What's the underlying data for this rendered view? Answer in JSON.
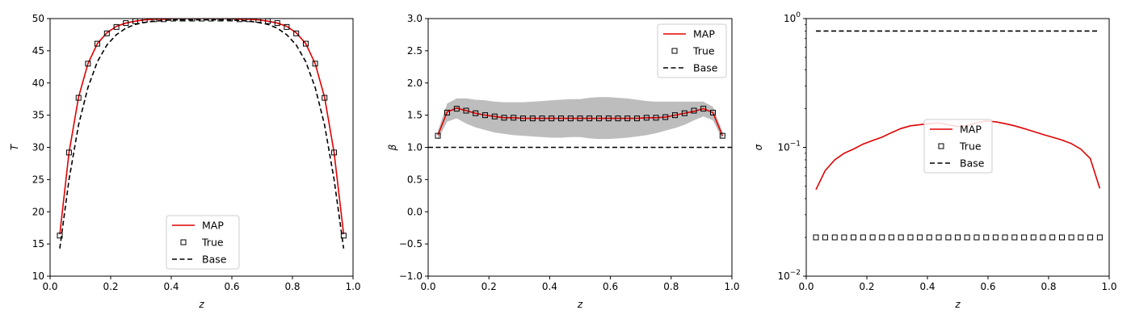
{
  "figure": {
    "background": "#ffffff"
  },
  "chart_data": [
    {
      "type": "line",
      "xlabel": "z",
      "ylabel": "T",
      "xlim": [
        0,
        1
      ],
      "ylim": [
        10,
        50
      ],
      "xticks": [
        "0.0",
        "0.2",
        "0.4",
        "0.6",
        "0.8",
        "1.0"
      ],
      "yticks": [
        "10",
        "15",
        "20",
        "25",
        "30",
        "35",
        "40",
        "45",
        "50"
      ],
      "yscale": "linear",
      "grid": false,
      "legend": {
        "placement": "lower center",
        "entries": [
          "MAP",
          "True",
          " Base"
        ]
      },
      "series": [
        {
          "name": "MAP",
          "style": "line",
          "color": "#e00000",
          "x": [
            0.032,
            0.0625,
            0.094,
            0.125,
            0.156,
            0.1875,
            0.219,
            0.25,
            0.281,
            0.3125,
            0.344,
            0.375,
            0.406,
            0.4375,
            0.469,
            0.5,
            0.531,
            0.5625,
            0.594,
            0.625,
            0.656,
            0.6875,
            0.719,
            0.75,
            0.781,
            0.8125,
            0.844,
            0.875,
            0.906,
            0.9375,
            0.969
          ],
          "y": [
            16.5,
            29.2,
            37.8,
            43.0,
            46.1,
            47.8,
            48.8,
            49.3,
            49.6,
            49.8,
            49.9,
            49.9,
            50.0,
            50.0,
            50.0,
            50.0,
            50.0,
            50.0,
            50.0,
            49.9,
            49.9,
            49.8,
            49.6,
            49.3,
            48.8,
            47.8,
            46.1,
            43.0,
            37.8,
            29.2,
            16.5
          ]
        },
        {
          "name": "True",
          "style": "markers",
          "marker": "square",
          "color": "#000000",
          "x": [
            0.032,
            0.0625,
            0.094,
            0.125,
            0.156,
            0.1875,
            0.219,
            0.25,
            0.281,
            0.3125,
            0.344,
            0.375,
            0.406,
            0.4375,
            0.469,
            0.5,
            0.531,
            0.5625,
            0.594,
            0.625,
            0.656,
            0.6875,
            0.719,
            0.75,
            0.781,
            0.8125,
            0.844,
            0.875,
            0.906,
            0.9375,
            0.969
          ],
          "y": [
            16.3,
            29.2,
            37.7,
            43.0,
            46.1,
            47.7,
            48.7,
            49.3,
            49.6,
            49.8,
            49.9,
            49.9,
            50.0,
            50.0,
            50.0,
            50.0,
            50.0,
            50.0,
            50.0,
            49.9,
            49.9,
            49.8,
            49.6,
            49.3,
            48.7,
            47.7,
            46.1,
            43.0,
            37.7,
            29.2,
            16.3
          ]
        },
        {
          "name": " Base",
          "style": "dashed",
          "color": "#000000",
          "x": [
            0.032,
            0.0625,
            0.094,
            0.125,
            0.156,
            0.1875,
            0.219,
            0.25,
            0.281,
            0.3125,
            0.344,
            0.375,
            0.406,
            0.4375,
            0.469,
            0.5,
            0.531,
            0.5625,
            0.594,
            0.625,
            0.656,
            0.6875,
            0.719,
            0.75,
            0.781,
            0.8125,
            0.844,
            0.875,
            0.906,
            0.9375,
            0.969
          ],
          "y": [
            14.3,
            25.0,
            33.5,
            39.3,
            43.3,
            45.9,
            47.5,
            48.5,
            49.1,
            49.4,
            49.6,
            49.7,
            49.8,
            49.8,
            49.8,
            49.8,
            49.8,
            49.8,
            49.8,
            49.7,
            49.6,
            49.4,
            49.1,
            48.5,
            47.5,
            45.9,
            43.3,
            39.3,
            33.5,
            25.0,
            14.3
          ]
        }
      ]
    },
    {
      "type": "line",
      "xlabel": "z",
      "ylabel": "β",
      "xlim": [
        0,
        1
      ],
      "ylim": [
        -1.0,
        3.0
      ],
      "xticks": [
        "0.0",
        "0.2",
        "0.4",
        "0.6",
        "0.8",
        "1.0"
      ],
      "yticks": [
        "−1.0",
        "−0.5",
        "0.0",
        "0.5",
        "1.0",
        "1.5",
        "2.0",
        "2.5",
        "3.0"
      ],
      "yscale": "linear",
      "grid": false,
      "legend": {
        "placement": "upper right",
        "entries": [
          "MAP",
          "True",
          "Base"
        ]
      },
      "band": {
        "color": "#bdbdbd",
        "x": [
          0.032,
          0.0625,
          0.094,
          0.125,
          0.156,
          0.1875,
          0.219,
          0.25,
          0.281,
          0.3125,
          0.344,
          0.375,
          0.406,
          0.4375,
          0.469,
          0.5,
          0.531,
          0.5625,
          0.594,
          0.625,
          0.656,
          0.6875,
          0.719,
          0.75,
          0.781,
          0.8125,
          0.844,
          0.875,
          0.906,
          0.9375,
          0.969
        ],
        "upper": [
          1.25,
          1.68,
          1.76,
          1.76,
          1.74,
          1.73,
          1.71,
          1.7,
          1.7,
          1.7,
          1.71,
          1.72,
          1.73,
          1.74,
          1.75,
          1.75,
          1.77,
          1.78,
          1.78,
          1.77,
          1.76,
          1.74,
          1.72,
          1.71,
          1.71,
          1.71,
          1.71,
          1.71,
          1.71,
          1.63,
          1.24
        ],
        "lower": [
          1.12,
          1.4,
          1.45,
          1.37,
          1.31,
          1.27,
          1.23,
          1.21,
          1.19,
          1.18,
          1.17,
          1.16,
          1.15,
          1.15,
          1.16,
          1.16,
          1.14,
          1.13,
          1.13,
          1.14,
          1.15,
          1.17,
          1.19,
          1.22,
          1.26,
          1.3,
          1.35,
          1.42,
          1.48,
          1.42,
          1.12
        ]
      },
      "series": [
        {
          "name": "MAP",
          "style": "line",
          "color": "#e00000",
          "x": [
            0.032,
            0.0625,
            0.094,
            0.125,
            0.156,
            0.1875,
            0.219,
            0.25,
            0.281,
            0.3125,
            0.344,
            0.375,
            0.406,
            0.4375,
            0.469,
            0.5,
            0.531,
            0.5625,
            0.594,
            0.625,
            0.656,
            0.6875,
            0.719,
            0.75,
            0.781,
            0.8125,
            0.844,
            0.875,
            0.906,
            0.9375,
            0.969
          ],
          "y": [
            1.19,
            1.55,
            1.61,
            1.57,
            1.53,
            1.5,
            1.48,
            1.46,
            1.46,
            1.45,
            1.45,
            1.45,
            1.45,
            1.45,
            1.45,
            1.45,
            1.45,
            1.45,
            1.45,
            1.45,
            1.45,
            1.45,
            1.46,
            1.46,
            1.47,
            1.5,
            1.53,
            1.56,
            1.6,
            1.54,
            1.18
          ]
        },
        {
          "name": "True",
          "style": "markers",
          "marker": "square",
          "color": "#000000",
          "x": [
            0.032,
            0.0625,
            0.094,
            0.125,
            0.156,
            0.1875,
            0.219,
            0.25,
            0.281,
            0.3125,
            0.344,
            0.375,
            0.406,
            0.4375,
            0.469,
            0.5,
            0.531,
            0.5625,
            0.594,
            0.625,
            0.656,
            0.6875,
            0.719,
            0.75,
            0.781,
            0.8125,
            0.844,
            0.875,
            0.906,
            0.9375,
            0.969
          ],
          "y": [
            1.18,
            1.54,
            1.6,
            1.57,
            1.53,
            1.5,
            1.48,
            1.46,
            1.46,
            1.45,
            1.45,
            1.45,
            1.45,
            1.45,
            1.45,
            1.45,
            1.45,
            1.45,
            1.45,
            1.45,
            1.45,
            1.45,
            1.46,
            1.46,
            1.47,
            1.5,
            1.53,
            1.57,
            1.6,
            1.54,
            1.18
          ]
        },
        {
          "name": "Base",
          "style": "dashed",
          "color": "#000000",
          "x": [
            0,
            1
          ],
          "y": [
            1.0,
            1.0
          ]
        }
      ]
    },
    {
      "type": "line",
      "xlabel": "z",
      "ylabel": "σ",
      "xlim": [
        0,
        1
      ],
      "ylim": [
        0.01,
        1
      ],
      "xticks": [
        "0.0",
        "0.2",
        "0.4",
        "0.6",
        "0.8",
        "1.0"
      ],
      "yticks": [
        {
          "value": 0.01,
          "base": "10",
          "exp": "−2"
        },
        {
          "value": 0.1,
          "base": "10",
          "exp": "−1"
        },
        {
          "value": 1,
          "base": "10",
          "exp": "0"
        }
      ],
      "yscale": "log",
      "grid": false,
      "legend": {
        "placement": "center",
        "entries": [
          "MAP",
          "True",
          "Base"
        ]
      },
      "series": [
        {
          "name": "MAP",
          "style": "line",
          "color": "#e00000",
          "x": [
            0.032,
            0.0625,
            0.094,
            0.125,
            0.156,
            0.1875,
            0.219,
            0.25,
            0.281,
            0.3125,
            0.344,
            0.375,
            0.406,
            0.4375,
            0.469,
            0.5,
            0.531,
            0.5625,
            0.594,
            0.625,
            0.656,
            0.6875,
            0.719,
            0.75,
            0.781,
            0.8125,
            0.844,
            0.875,
            0.906,
            0.9375,
            0.969
          ],
          "y": [
            0.047,
            0.066,
            0.08,
            0.09,
            0.097,
            0.106,
            0.113,
            0.12,
            0.13,
            0.14,
            0.147,
            0.15,
            0.153,
            0.155,
            0.15,
            0.145,
            0.148,
            0.155,
            0.16,
            0.158,
            0.153,
            0.147,
            0.14,
            0.133,
            0.126,
            0.12,
            0.114,
            0.107,
            0.097,
            0.082,
            0.048
          ]
        },
        {
          "name": "True",
          "style": "markers",
          "marker": "square",
          "color": "#000000",
          "x": [
            0.032,
            0.0625,
            0.094,
            0.125,
            0.156,
            0.1875,
            0.219,
            0.25,
            0.281,
            0.3125,
            0.344,
            0.375,
            0.406,
            0.4375,
            0.469,
            0.5,
            0.531,
            0.5625,
            0.594,
            0.625,
            0.656,
            0.6875,
            0.719,
            0.75,
            0.781,
            0.8125,
            0.844,
            0.875,
            0.906,
            0.9375,
            0.969
          ],
          "y": [
            0.02,
            0.02,
            0.02,
            0.02,
            0.02,
            0.02,
            0.02,
            0.02,
            0.02,
            0.02,
            0.02,
            0.02,
            0.02,
            0.02,
            0.02,
            0.02,
            0.02,
            0.02,
            0.02,
            0.02,
            0.02,
            0.02,
            0.02,
            0.02,
            0.02,
            0.02,
            0.02,
            0.02,
            0.02,
            0.02,
            0.02
          ]
        },
        {
          "name": "Base",
          "style": "dashed",
          "color": "#000000",
          "x": [
            0.032,
            0.969
          ],
          "y": [
            0.8,
            0.8
          ]
        }
      ]
    }
  ]
}
